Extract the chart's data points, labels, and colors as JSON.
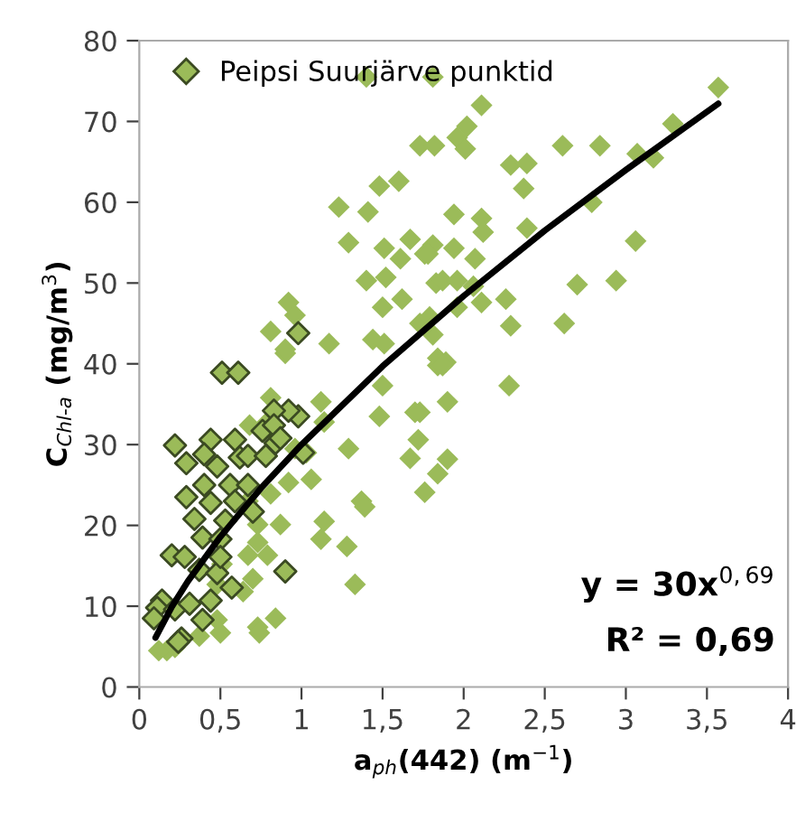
{
  "chart_data": {
    "type": "scatter",
    "xlabel": "a$_{ph}$(442) (m$^{−1}$)",
    "ylabel": "C$_{Chl-a}$ (mg/m$^{3}$)",
    "xlim": [
      0,
      4
    ],
    "ylim": [
      0,
      80
    ],
    "xticks": [
      0,
      {
        "value": 0.5,
        "label": "0,5"
      },
      1,
      {
        "value": 1.5,
        "label": "1,5"
      },
      2,
      {
        "value": 2.5,
        "label": "2,5"
      },
      3,
      {
        "value": 3.5,
        "label": "3,5"
      },
      4
    ],
    "yticks": [
      0,
      10,
      20,
      30,
      40,
      50,
      60,
      70,
      80
    ],
    "grid": false,
    "legend": "top left",
    "annotations": [
      "y = 30x$^{0,69}$",
      "R² = 0,69"
    ],
    "series": [
      {
        "marker": "diamond",
        "color": "#9bbb59",
        "x": [
          1.4,
          1.73,
          1.82,
          1.23,
          1.48,
          1.6,
          1.41,
          1.29,
          1.51,
          1.67,
          1.4,
          1.52,
          1.61,
          1.76,
          1.83,
          1.62,
          1.5,
          0.92,
          0.96,
          0.81,
          0.9,
          1.17,
          1.73,
          1.81,
          3.57,
          3.29,
          2.02,
          1.96,
          2.01,
          2.61,
          2.84,
          1.81,
          2.11,
          2.29,
          2.39,
          2.37,
          3.07,
          3.17,
          2.79,
          1.94,
          2.11,
          2.12,
          2.39,
          1.81,
          1.94,
          1.78,
          2.07,
          3.06,
          1.87,
          1.96,
          2.06,
          2.7,
          2.94,
          2.11,
          2.26,
          2.29,
          2.62,
          1.79,
          1.96,
          1.84,
          1.9,
          2.28,
          1.73,
          1.72,
          1.9,
          1.84,
          1.76,
          1.84,
          1.89,
          1.44,
          1.51,
          1.87,
          1.5,
          1.7,
          1.48,
          1.67,
          1.29,
          1.37,
          1.39,
          1.14,
          1.12,
          1.28,
          1.33,
          1.12,
          1.03,
          1.06,
          0.92,
          0.81,
          0.87,
          0.73,
          0.79,
          0.7,
          0.64,
          0.84,
          0.73,
          0.48,
          0.37,
          0.17,
          0.67,
          0.79,
          0.68,
          0.81,
          0.67,
          0.73,
          0.51,
          0.48,
          0.96,
          1.14,
          0.9,
          0.12,
          0.22,
          0.5,
          0.74
        ],
        "values": [
          75.5,
          67,
          67,
          59.4,
          62,
          62.6,
          58.8,
          55,
          54.3,
          55.4,
          50.3,
          50.7,
          53,
          53.6,
          50,
          48,
          47,
          47.6,
          46,
          44,
          41.3,
          42.5,
          45,
          43.6,
          74.2,
          69.7,
          69.4,
          68,
          66.6,
          67,
          67,
          75.5,
          72,
          64.6,
          64.8,
          61.7,
          66,
          65.5,
          60,
          58.5,
          58,
          56.3,
          56.8,
          54.7,
          54.3,
          53.6,
          53,
          55.2,
          50.3,
          50.3,
          49.6,
          49.8,
          50.3,
          47.6,
          48,
          44.7,
          45,
          45.8,
          47,
          40.7,
          35.3,
          37.3,
          34,
          30.6,
          28.2,
          26.4,
          24.1,
          39.8,
          40.2,
          43,
          42.5,
          39.8,
          37.3,
          34,
          33.5,
          28.3,
          29.5,
          23,
          22.3,
          20.5,
          18.3,
          17.4,
          12.7,
          35.3,
          29,
          25.7,
          25.3,
          23.9,
          20.1,
          17.9,
          16.3,
          13.4,
          11.8,
          8.5,
          7.4,
          8.3,
          6.3,
          4.5,
          16.3,
          32.8,
          32.4,
          35.8,
          23,
          20.1,
          15.2,
          12.7,
          29.5,
          32.8,
          41.8,
          4.5,
          4.9,
          6.7,
          6.7
        ]
      },
      {
        "marker": "diamond",
        "name": "Peipsi Suurjärve punktid",
        "color": "#9bbb59",
        "x": [
          0.98,
          0.51,
          0.61,
          0.98,
          0.92,
          0.83,
          0.22,
          0.44,
          0.29,
          0.4,
          0.48,
          0.59,
          0.62,
          0.76,
          0.84,
          0.83,
          1.01,
          0.4,
          0.56,
          0.67,
          0.29,
          0.44,
          0.59,
          0.7,
          0.34,
          0.53,
          0.39,
          0.5,
          0.2,
          0.28,
          0.37,
          0.48,
          0.57,
          0.5,
          0.14,
          0.11,
          0.09,
          0.22,
          0.31,
          0.39,
          0.26,
          0.44,
          0.9,
          0.67,
          0.78,
          0.87,
          0.24
        ],
        "values": [
          43.8,
          38.9,
          38.9,
          33.5,
          34.2,
          34.2,
          29.9,
          30.6,
          27.7,
          28.8,
          27.3,
          30.6,
          28.4,
          31.7,
          30.2,
          32.4,
          29,
          25,
          25,
          25,
          23.5,
          22.8,
          23,
          21.7,
          20.8,
          20.6,
          18.5,
          18.3,
          16.3,
          16.1,
          14.5,
          14.1,
          12.3,
          16.1,
          10.7,
          9.8,
          8.5,
          9.6,
          10.3,
          8.3,
          6,
          10.7,
          14.3,
          28.6,
          28.6,
          30.8,
          5.6
        ]
      },
      {
        "type": "line",
        "marker": "none",
        "color": "#000000",
        "x": [
          0.1,
          0.2,
          0.3,
          0.5,
          0.75,
          1,
          1.5,
          2,
          2.5,
          3,
          3.57
        ],
        "values": [
          6.1,
          9.9,
          13.1,
          18.6,
          24.6,
          30,
          39.7,
          48.4,
          56.5,
          64.0,
          72.2
        ]
      }
    ]
  }
}
